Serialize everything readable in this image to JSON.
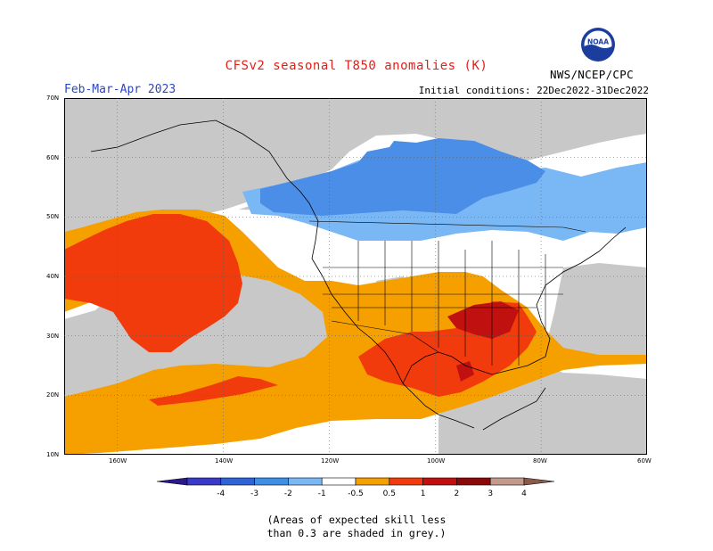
{
  "title": "CFSv2 seasonal T850 anomalies (K)",
  "season": "Feb-Mar-Apr 2023",
  "initial_conditions": "Initial conditions: 22Dec2022-31Dec2022",
  "agency": "NWS/NCEP/CPC",
  "logo": {
    "icon": "noaa-logo",
    "text": "NOAA"
  },
  "note_lines": [
    "(Areas of expected skill less",
    "than 0.3 are shaded in grey.)"
  ],
  "lat_labels": [
    "70N",
    "60N",
    "50N",
    "40N",
    "30N",
    "20N",
    "10N"
  ],
  "lon_labels": [
    "160W",
    "140W",
    "120W",
    "100W",
    "80W",
    "60W"
  ],
  "colorbar": {
    "labels": [
      "-4",
      "-3",
      "-2",
      "-1",
      "-0.5",
      "0.5",
      "1",
      "2",
      "3",
      "4"
    ],
    "colors": [
      "#2a1a8c",
      "#3a3ac8",
      "#2f63d8",
      "#3e8fe8",
      "#7ab8f5",
      "#ffffff",
      "#f6a000",
      "#f23b0c",
      "#c01010",
      "#8c0808",
      "#c49a8c",
      "#8a5a4a"
    ]
  },
  "palette": {
    "skill_grey": "#c8c8c8",
    "orange": "#f6a000",
    "red": "#f23b0c",
    "darkred": "#c01010",
    "lightblue": "#7ab8f5",
    "blue": "#4a8ee8",
    "white": "#ffffff"
  }
}
